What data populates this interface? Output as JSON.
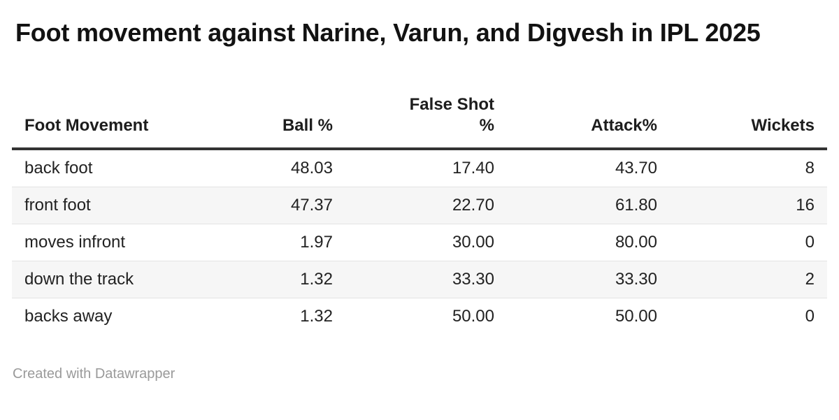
{
  "chart_data": {
    "type": "table",
    "title": "Foot movement against Narine, Varun, and Digvesh in IPL 2025",
    "columns": [
      "Foot Movement",
      "Ball %",
      "False Shot %",
      "Attack%",
      "Wickets"
    ],
    "column_alignment": [
      "left",
      "right",
      "right",
      "right",
      "right"
    ],
    "rows": [
      [
        "back foot",
        "48.03",
        "17.40",
        "43.70",
        "8"
      ],
      [
        "front foot",
        "47.37",
        "22.70",
        "61.80",
        "16"
      ],
      [
        "moves infront",
        "1.97",
        "30.00",
        "80.00",
        "0"
      ],
      [
        "down the track",
        "1.32",
        "33.30",
        "33.30",
        "2"
      ],
      [
        "backs away",
        "1.32",
        "50.00",
        "50.00",
        "0"
      ]
    ],
    "layout": {
      "zebra_striping": true,
      "header_rule": "thick-bottom-border",
      "numeric_columns_right_aligned": true
    }
  },
  "footer": {
    "credit": "Created with Datawrapper"
  },
  "colors": {
    "background": "#ffffff",
    "title_text": "#121212",
    "header_text": "#1d1d1d",
    "body_text": "#222222",
    "header_border": "#333333",
    "zebra_stripe": "#f6f6f6",
    "row_divider": "#e3e3e3",
    "credit_text": "#9a9a9a"
  }
}
